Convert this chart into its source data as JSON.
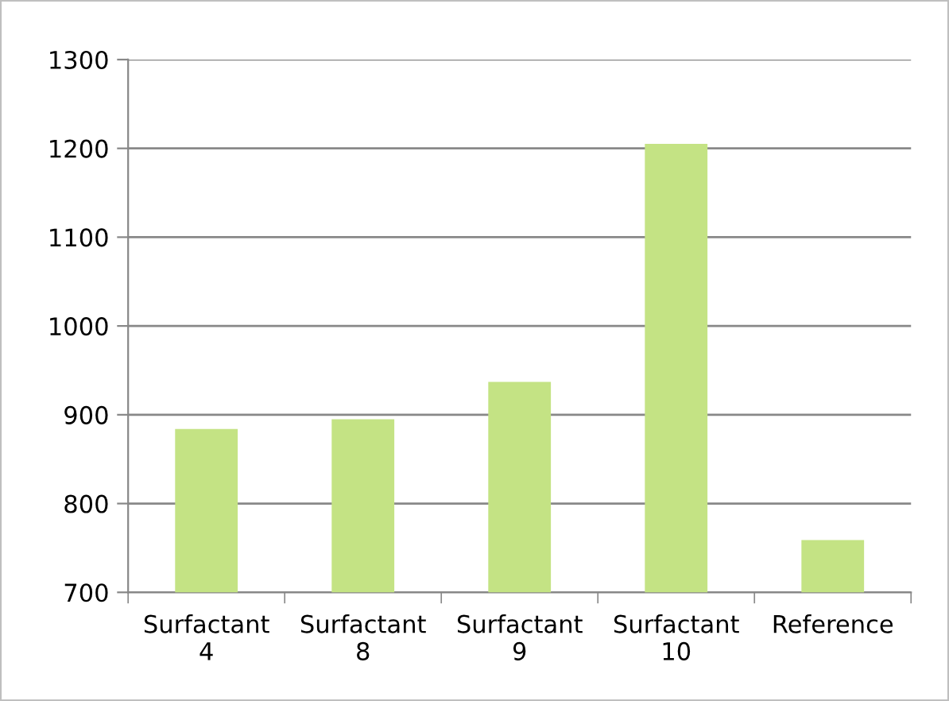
{
  "chart_data": {
    "type": "bar",
    "categories": [
      "Surfactant\n4",
      "Surfactant\n8",
      "Surfactant\n9",
      "Surfactant\n10",
      "Reference"
    ],
    "values": [
      884,
      895,
      937,
      1205,
      759
    ],
    "color": "#c4e384",
    "ylim": [
      700,
      1300
    ],
    "yticks": [
      700,
      800,
      900,
      1000,
      1100,
      1200,
      1300
    ],
    "grid": "y"
  }
}
